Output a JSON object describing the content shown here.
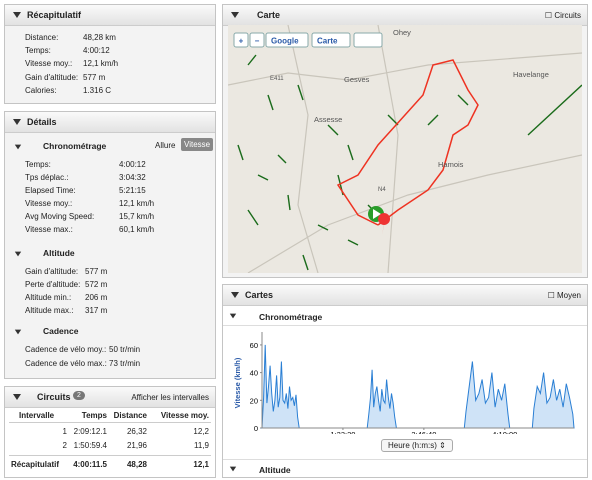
{
  "recap": {
    "title": "Récapitulatif",
    "rows": [
      [
        "Distance:",
        "48,28 km"
      ],
      [
        "Temps:",
        "4:00:12"
      ],
      [
        "Vitesse moy.:",
        "12,1 km/h"
      ],
      [
        "Gain d'altitude:",
        "577 m"
      ],
      [
        "Calories:",
        "1.316 C"
      ]
    ]
  },
  "details": {
    "title": "Détails",
    "timing": {
      "title": "Chronométrage",
      "toggle": [
        "Allure",
        "Vitesse"
      ],
      "rows": [
        [
          "Temps:",
          "4:00:12"
        ],
        [
          "Tps déplac.:",
          "3:04:32"
        ],
        [
          "Elapsed Time:",
          "5:21:15"
        ],
        [
          "Vitesse moy.:",
          "12,1 km/h"
        ],
        [
          "Avg Moving Speed:",
          "15,7 km/h"
        ],
        [
          "Vitesse max.:",
          "60,1 km/h"
        ]
      ]
    },
    "altitude": {
      "title": "Altitude",
      "rows": [
        [
          "Gain d'altitude:",
          "577 m"
        ],
        [
          "Perte d'altitude:",
          "572 m"
        ],
        [
          "Altitude min.:",
          "206 m"
        ],
        [
          "Altitude max.:",
          "317 m"
        ]
      ]
    },
    "cadence": {
      "title": "Cadence",
      "rows": [
        [
          "Cadence de vélo moy.:",
          "50 tr/min"
        ],
        [
          "Cadence de vélo max.:",
          "73 tr/min"
        ]
      ]
    }
  },
  "circuits": {
    "title": "Circuits",
    "count": 2,
    "link": "Afficher les intervalles",
    "columns": [
      "Intervalle",
      "Temps",
      "Distance",
      "Vitesse moy."
    ],
    "rows": [
      [
        "1",
        "2:09:12.1",
        "26,32",
        "12,2"
      ],
      [
        "2",
        "1:50:59.4",
        "21,96",
        "11,9"
      ],
      [
        "Récapitulatif",
        "4:00:11.5",
        "48,28",
        "12,1"
      ]
    ]
  },
  "map": {
    "title": "Carte",
    "checkbox": "Circuits",
    "buttons": [
      "+",
      "−",
      "Google",
      "Carte"
    ],
    "places": [
      "Ohey",
      "Gesves",
      "Assesse",
      "Havelange",
      "Hamois",
      "E411",
      "N4"
    ]
  },
  "charts": {
    "title": "Cartes",
    "checkbox": "Moyen",
    "section": "Chronométrage",
    "next_section": "Altitude",
    "x_selector": "Heure (h:m:s)"
  },
  "chart_data": {
    "type": "area",
    "ylabel": "Vitesse (km/h)",
    "color": "#2a7fd4",
    "fill": "#cfe3f7",
    "x": [
      0,
      100,
      200,
      300,
      400,
      500,
      600,
      700,
      800,
      900,
      1000,
      1100,
      1200,
      1300,
      1400,
      1500,
      1600,
      1700,
      1800,
      1900,
      2000,
      2100,
      2200,
      2300,
      6500,
      6600,
      6700,
      6800,
      6900,
      7000,
      7100,
      7200,
      7300,
      7400,
      7500,
      7600,
      7700,
      7800,
      7900,
      8000,
      8100,
      8200,
      8300,
      12500,
      12600,
      12800,
      13000,
      13200,
      13400,
      13600,
      13800,
      14000,
      14200,
      14400,
      14600,
      14800,
      15000,
      15200,
      15300,
      16700,
      16800,
      17000,
      17200,
      17400,
      17600,
      17800,
      18000,
      18200,
      18400,
      18600,
      18800,
      19000,
      19200,
      19275
    ],
    "values": [
      0,
      22,
      60,
      18,
      30,
      45,
      25,
      12,
      20,
      38,
      15,
      22,
      48,
      20,
      18,
      25,
      14,
      30,
      20,
      22,
      16,
      24,
      8,
      0,
      0,
      10,
      22,
      42,
      15,
      25,
      30,
      20,
      12,
      28,
      20,
      18,
      35,
      22,
      14,
      25,
      18,
      8,
      0,
      0,
      12,
      30,
      48,
      20,
      25,
      35,
      18,
      22,
      40,
      15,
      28,
      20,
      32,
      10,
      0,
      0,
      14,
      30,
      25,
      40,
      18,
      22,
      35,
      20,
      28,
      15,
      32,
      22,
      10,
      0
    ],
    "xlim": [
      0,
      19275
    ],
    "ylim": [
      0,
      65
    ],
    "yticks": [
      0,
      20,
      40,
      60
    ],
    "xticks": [
      {
        "value": 5000,
        "label": "1:23:20"
      },
      {
        "value": 10000,
        "label": "2:46:40"
      },
      {
        "value": 15000,
        "label": "4:10:00"
      }
    ]
  }
}
